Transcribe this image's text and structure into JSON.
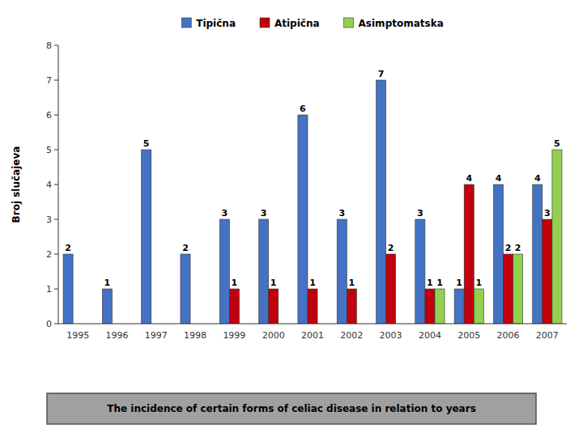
{
  "chart_data": {
    "type": "bar",
    "y_label": "Broj slučajeva",
    "caption": "The incidence of certain forms of celiac disease in relation to years",
    "categories": [
      "1995",
      "1996",
      "1997",
      "1998",
      "1999",
      "2000",
      "2001",
      "2002",
      "2003",
      "2004",
      "2005",
      "2006",
      "2007"
    ],
    "series": [
      {
        "name": "Tipična",
        "color": "#4472C4",
        "values": [
          2,
          1,
          5,
          2,
          3,
          3,
          6,
          3,
          7,
          3,
          1,
          4,
          4
        ]
      },
      {
        "name": "Atipična",
        "color": "#C0000C",
        "values": [
          0,
          0,
          0,
          0,
          1,
          1,
          1,
          1,
          2,
          1,
          4,
          2,
          3
        ]
      },
      {
        "name": "Asimptomatska",
        "color": "#92D050",
        "values": [
          0,
          0,
          0,
          0,
          0,
          0,
          0,
          0,
          0,
          1,
          1,
          2,
          5
        ]
      }
    ],
    "ylim": [
      0,
      8
    ],
    "yticks": [
      0,
      1,
      2,
      3,
      4,
      5,
      6,
      7,
      8
    ],
    "grid": false,
    "legend": "top",
    "data_labels": true
  }
}
